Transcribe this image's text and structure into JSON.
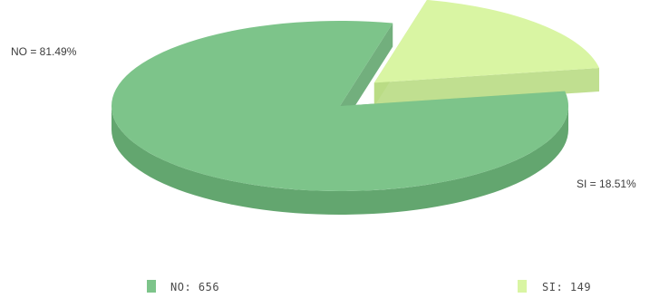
{
  "chart_data": {
    "type": "pie",
    "three_d": true,
    "exploded": [
      "SI"
    ],
    "slices": [
      {
        "name": "NO",
        "count": 656,
        "percent": 81.49,
        "color": "#7dc48a",
        "side_color": "#63a66f",
        "label": "NO = 81.49%",
        "legend": "NO: 656"
      },
      {
        "name": "SI",
        "count": 149,
        "percent": 18.51,
        "color": "#d9f5a3",
        "side_color": "#b9dc84",
        "label": "SI = 18.51%",
        "legend": "SI: 149"
      }
    ],
    "legend_position": "bottom"
  }
}
